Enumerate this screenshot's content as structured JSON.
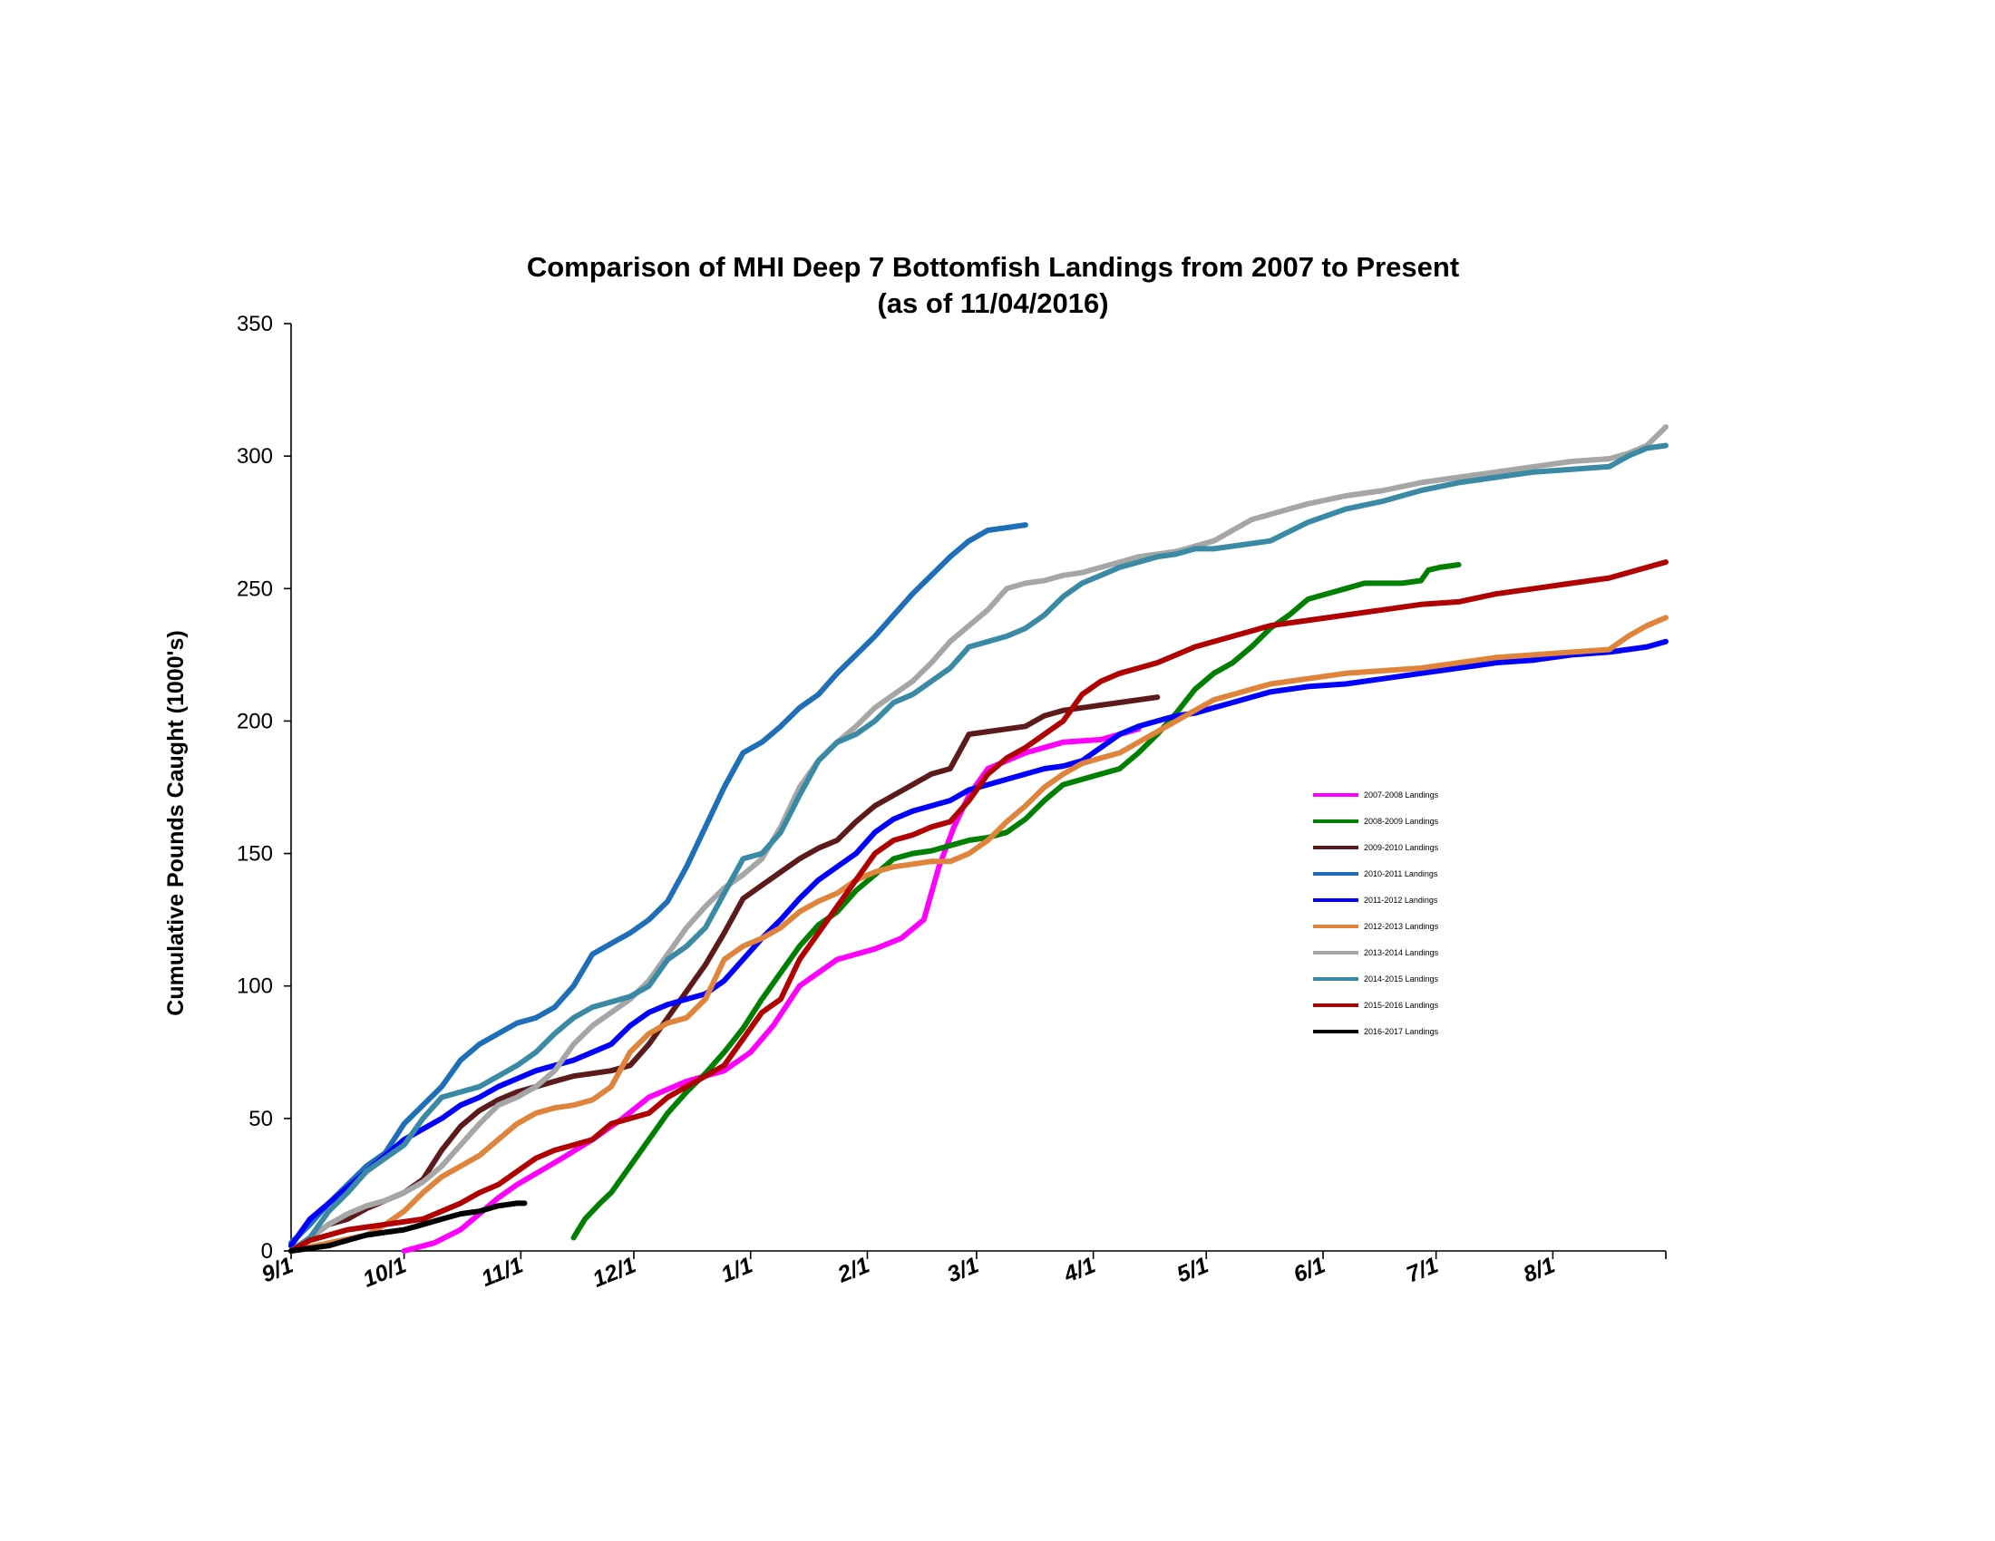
{
  "chart_data": {
    "type": "line",
    "title": "Comparison of MHI Deep 7 Bottomfish Landings from 2007 to Present",
    "subtitle": "(as of 11/04/2016)",
    "xlabel": "",
    "ylabel": "Cumulative Pounds Caught (1000's)",
    "ylim": [
      0,
      350
    ],
    "yticks": [
      0,
      50,
      100,
      150,
      200,
      250,
      300,
      350
    ],
    "x_unit": "days since Sept 1",
    "xlim": [
      0,
      365
    ],
    "xticks": [
      {
        "label": "9/1",
        "day": 0
      },
      {
        "label": "10/1",
        "day": 30
      },
      {
        "label": "11/1",
        "day": 61
      },
      {
        "label": "12/1",
        "day": 91
      },
      {
        "label": "1/1",
        "day": 122
      },
      {
        "label": "2/1",
        "day": 153
      },
      {
        "label": "3/1",
        "day": 182
      },
      {
        "label": "4/1",
        "day": 213
      },
      {
        "label": "5/1",
        "day": 243
      },
      {
        "label": "6/1",
        "day": 274
      },
      {
        "label": "7/1",
        "day": 304
      },
      {
        "label": "8/1",
        "day": 335
      }
    ],
    "grid": false,
    "legend_position": "center-right",
    "series": [
      {
        "name": "2007-2008 Landings",
        "color": "#ff00ff",
        "x": [
          30,
          38,
          45,
          50,
          55,
          60,
          66,
          72,
          80,
          88,
          95,
          105,
          115,
          122,
          128,
          135,
          145,
          155,
          162,
          168,
          172,
          176,
          180,
          185,
          195,
          205,
          215,
          225
        ],
        "y": [
          0,
          3,
          8,
          14,
          20,
          25,
          30,
          35,
          42,
          50,
          58,
          64,
          68,
          75,
          85,
          100,
          110,
          114,
          118,
          125,
          145,
          160,
          172,
          182,
          188,
          192,
          193,
          197
        ]
      },
      {
        "name": "2008-2009 Landings",
        "color": "#008000",
        "x": [
          75,
          78,
          82,
          85,
          90,
          95,
          100,
          105,
          110,
          115,
          120,
          125,
          130,
          135,
          140,
          145,
          150,
          155,
          160,
          165,
          170,
          175,
          180,
          185,
          190,
          195,
          200,
          205,
          210,
          215,
          220,
          225,
          230,
          235,
          240,
          245,
          250,
          255,
          260,
          265,
          270,
          275,
          280,
          285,
          290,
          295,
          300,
          302,
          305,
          310
        ],
        "y": [
          5,
          12,
          18,
          22,
          32,
          42,
          52,
          60,
          67,
          75,
          84,
          95,
          105,
          115,
          123,
          128,
          136,
          142,
          148,
          150,
          151,
          153,
          155,
          156,
          158,
          163,
          170,
          176,
          178,
          180,
          182,
          188,
          195,
          203,
          212,
          218,
          222,
          228,
          235,
          240,
          246,
          248,
          250,
          252,
          252,
          252,
          253,
          257,
          258,
          259
        ]
      },
      {
        "name": "2009-2010 Landings",
        "color": "#5c1a1a",
        "x": [
          0,
          5,
          10,
          15,
          20,
          25,
          30,
          35,
          40,
          45,
          50,
          55,
          60,
          65,
          70,
          75,
          80,
          85,
          90,
          95,
          100,
          105,
          110,
          115,
          120,
          125,
          130,
          135,
          140,
          145,
          150,
          155,
          160,
          165,
          170,
          175,
          180,
          185,
          190,
          195,
          200,
          205,
          210,
          215,
          220,
          230
        ],
        "y": [
          0,
          5,
          10,
          12,
          16,
          19,
          22,
          27,
          38,
          47,
          53,
          57,
          60,
          62,
          64,
          66,
          67,
          68,
          70,
          78,
          88,
          98,
          108,
          120,
          133,
          138,
          143,
          148,
          152,
          155,
          162,
          168,
          172,
          176,
          180,
          182,
          195,
          196,
          197,
          198,
          202,
          204,
          205,
          206,
          207,
          209
        ]
      },
      {
        "name": "2010-2011 Landings",
        "color": "#1e6fb8",
        "x": [
          0,
          5,
          10,
          15,
          20,
          25,
          30,
          35,
          40,
          45,
          50,
          55,
          60,
          65,
          70,
          75,
          80,
          85,
          90,
          95,
          100,
          105,
          110,
          115,
          120,
          125,
          130,
          135,
          140,
          145,
          150,
          155,
          160,
          165,
          170,
          175,
          180,
          185,
          190,
          195
        ],
        "y": [
          3,
          10,
          18,
          25,
          32,
          37,
          48,
          55,
          62,
          72,
          78,
          82,
          86,
          88,
          92,
          100,
          112,
          116,
          120,
          125,
          132,
          145,
          160,
          175,
          188,
          192,
          198,
          205,
          210,
          218,
          225,
          232,
          240,
          248,
          255,
          262,
          268,
          272,
          273,
          274
        ]
      },
      {
        "name": "2011-2012 Landings",
        "color": "#0000ff",
        "x": [
          0,
          5,
          10,
          15,
          20,
          25,
          30,
          35,
          40,
          45,
          50,
          55,
          60,
          65,
          70,
          75,
          80,
          85,
          90,
          95,
          100,
          105,
          110,
          115,
          120,
          125,
          130,
          135,
          140,
          145,
          150,
          155,
          160,
          165,
          170,
          175,
          180,
          185,
          190,
          195,
          200,
          205,
          210,
          215,
          220,
          225,
          230,
          235,
          240,
          245,
          250,
          255,
          260,
          265,
          270,
          280,
          290,
          300,
          310,
          320,
          330,
          340,
          350,
          360,
          365
        ],
        "y": [
          2,
          12,
          18,
          24,
          30,
          36,
          42,
          46,
          50,
          55,
          58,
          62,
          65,
          68,
          70,
          72,
          75,
          78,
          85,
          90,
          93,
          95,
          97,
          102,
          110,
          118,
          125,
          133,
          140,
          145,
          150,
          158,
          163,
          166,
          168,
          170,
          174,
          176,
          178,
          180,
          182,
          183,
          185,
          190,
          195,
          198,
          200,
          202,
          203,
          205,
          207,
          209,
          211,
          212,
          213,
          214,
          216,
          218,
          220,
          222,
          223,
          225,
          226,
          228,
          230
        ]
      },
      {
        "name": "2012-2013 Landings",
        "color": "#e0843c",
        "x": [
          0,
          10,
          20,
          25,
          30,
          35,
          40,
          45,
          50,
          55,
          60,
          65,
          70,
          75,
          80,
          85,
          90,
          95,
          100,
          105,
          110,
          115,
          120,
          125,
          130,
          135,
          140,
          145,
          150,
          155,
          160,
          165,
          170,
          175,
          180,
          185,
          190,
          195,
          200,
          205,
          210,
          215,
          220,
          225,
          230,
          235,
          240,
          245,
          250,
          255,
          260,
          270,
          280,
          290,
          300,
          310,
          320,
          330,
          340,
          350,
          355,
          360,
          365
        ],
        "y": [
          0,
          3,
          6,
          10,
          15,
          22,
          28,
          32,
          36,
          42,
          48,
          52,
          54,
          55,
          57,
          62,
          75,
          82,
          86,
          88,
          95,
          110,
          115,
          118,
          122,
          128,
          132,
          135,
          140,
          143,
          145,
          146,
          147,
          147,
          150,
          155,
          162,
          168,
          175,
          180,
          184,
          186,
          188,
          192,
          196,
          200,
          204,
          208,
          210,
          212,
          214,
          216,
          218,
          219,
          220,
          222,
          224,
          225,
          226,
          227,
          232,
          236,
          239
        ]
      },
      {
        "name": "2013-2014 Landings",
        "color": "#a6a6a6",
        "x": [
          0,
          5,
          10,
          15,
          20,
          25,
          30,
          35,
          40,
          45,
          50,
          55,
          60,
          65,
          70,
          75,
          80,
          85,
          90,
          95,
          100,
          105,
          110,
          115,
          120,
          125,
          130,
          135,
          140,
          145,
          150,
          155,
          160,
          165,
          170,
          175,
          180,
          185,
          190,
          195,
          200,
          205,
          210,
          215,
          220,
          225,
          230,
          235,
          240,
          245,
          250,
          255,
          260,
          270,
          280,
          290,
          300,
          310,
          320,
          330,
          340,
          350,
          355,
          360,
          365
        ],
        "y": [
          0,
          5,
          10,
          14,
          17,
          19,
          22,
          26,
          32,
          40,
          48,
          55,
          58,
          62,
          68,
          78,
          85,
          90,
          95,
          102,
          112,
          122,
          130,
          137,
          142,
          148,
          160,
          175,
          185,
          192,
          198,
          205,
          210,
          215,
          222,
          230,
          236,
          242,
          250,
          252,
          253,
          255,
          256,
          258,
          260,
          262,
          263,
          264,
          266,
          268,
          272,
          276,
          278,
          282,
          285,
          287,
          290,
          292,
          294,
          296,
          298,
          299,
          301,
          304,
          311
        ]
      },
      {
        "name": "2014-2015 Landings",
        "color": "#3a8aa6",
        "x": [
          0,
          5,
          10,
          15,
          20,
          25,
          30,
          35,
          40,
          45,
          50,
          55,
          60,
          65,
          70,
          75,
          80,
          85,
          90,
          95,
          100,
          105,
          110,
          115,
          120,
          125,
          130,
          135,
          140,
          145,
          150,
          155,
          160,
          165,
          170,
          175,
          180,
          185,
          190,
          195,
          200,
          205,
          210,
          215,
          220,
          225,
          230,
          235,
          240,
          245,
          250,
          255,
          260,
          270,
          280,
          290,
          300,
          310,
          320,
          330,
          340,
          350,
          355,
          360,
          365
        ],
        "y": [
          0,
          5,
          15,
          22,
          30,
          35,
          40,
          50,
          58,
          60,
          62,
          66,
          70,
          75,
          82,
          88,
          92,
          94,
          96,
          100,
          110,
          115,
          122,
          135,
          148,
          150,
          158,
          172,
          185,
          192,
          195,
          200,
          207,
          210,
          215,
          220,
          228,
          230,
          232,
          235,
          240,
          247,
          252,
          255,
          258,
          260,
          262,
          263,
          265,
          265,
          266,
          267,
          268,
          275,
          280,
          283,
          287,
          290,
          292,
          294,
          295,
          296,
          300,
          303,
          304
        ]
      },
      {
        "name": "2015-2016 Landings",
        "color": "#b00000",
        "x": [
          0,
          5,
          10,
          15,
          20,
          25,
          30,
          35,
          40,
          45,
          50,
          55,
          60,
          65,
          70,
          75,
          80,
          85,
          90,
          95,
          100,
          105,
          110,
          115,
          120,
          125,
          130,
          135,
          140,
          145,
          150,
          155,
          160,
          165,
          170,
          175,
          180,
          185,
          190,
          195,
          200,
          205,
          210,
          215,
          220,
          225,
          230,
          235,
          240,
          245,
          250,
          255,
          260,
          270,
          280,
          290,
          300,
          310,
          320,
          330,
          340,
          350,
          355,
          360,
          365
        ],
        "y": [
          0,
          4,
          6,
          8,
          9,
          10,
          11,
          12,
          15,
          18,
          22,
          25,
          30,
          35,
          38,
          40,
          42,
          48,
          50,
          52,
          58,
          62,
          66,
          70,
          80,
          90,
          95,
          110,
          120,
          130,
          140,
          150,
          155,
          157,
          160,
          162,
          170,
          180,
          186,
          190,
          195,
          200,
          210,
          215,
          218,
          220,
          222,
          225,
          228,
          230,
          232,
          234,
          236,
          238,
          240,
          242,
          244,
          245,
          248,
          250,
          252,
          254,
          256,
          258,
          260
        ]
      },
      {
        "name": "2016-2017 Landings",
        "color": "#000000",
        "x": [
          0,
          5,
          10,
          15,
          20,
          25,
          30,
          35,
          40,
          45,
          50,
          55,
          60,
          62
        ],
        "y": [
          0,
          1,
          2,
          4,
          6,
          7,
          8,
          10,
          12,
          14,
          15,
          17,
          18,
          18
        ]
      }
    ]
  }
}
